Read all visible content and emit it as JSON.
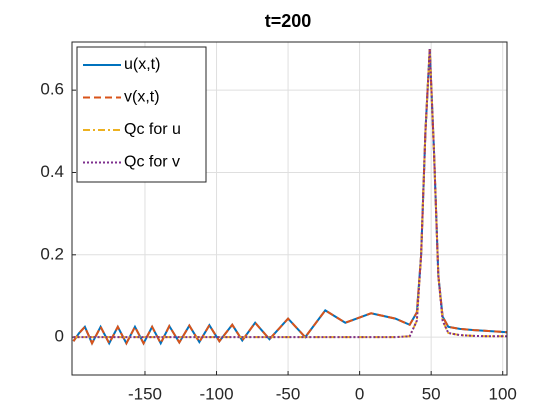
{
  "chart_data": {
    "type": "line",
    "title": "t=200",
    "x": [
      -200,
      -196,
      -192,
      -187,
      -181,
      -175,
      -169,
      -163,
      -157,
      -151,
      -145,
      -139,
      -133,
      -126,
      -119,
      -112,
      -105,
      -98,
      -89,
      -82,
      -73,
      -63,
      -50,
      -38,
      -24,
      -10,
      8,
      25,
      35,
      40,
      43,
      46,
      49,
      52,
      55,
      58,
      62,
      70,
      80,
      90,
      103
    ],
    "series": [
      {
        "name": "u(x,t)",
        "color": "#0072BD",
        "style": "solid",
        "values": [
          -0.01,
          0.01,
          0.025,
          -0.015,
          0.025,
          -0.015,
          0.025,
          -0.015,
          0.025,
          -0.015,
          0.025,
          -0.015,
          0.027,
          -0.013,
          0.028,
          -0.012,
          0.029,
          -0.01,
          0.03,
          -0.008,
          0.035,
          -0.005,
          0.045,
          0.0,
          0.065,
          0.035,
          0.058,
          0.045,
          0.03,
          0.06,
          0.2,
          0.5,
          0.7,
          0.45,
          0.15,
          0.05,
          0.025,
          0.02,
          0.017,
          0.015,
          0.012
        ]
      },
      {
        "name": "v(x,t)",
        "color": "#D95319",
        "style": "dashed",
        "values": [
          -0.01,
          0.01,
          0.025,
          -0.015,
          0.025,
          -0.015,
          0.025,
          -0.015,
          0.025,
          -0.015,
          0.025,
          -0.015,
          0.027,
          -0.013,
          0.028,
          -0.012,
          0.029,
          -0.01,
          0.03,
          -0.008,
          0.035,
          -0.005,
          0.045,
          0.0,
          0.065,
          0.035,
          0.058,
          0.045,
          0.03,
          0.06,
          0.2,
          0.5,
          0.7,
          0.45,
          0.15,
          0.05,
          0.025,
          0.02,
          0.017,
          0.015,
          0.012
        ]
      },
      {
        "name": "Qc for u",
        "color": "#EDB120",
        "style": "dashdot",
        "values": [
          0,
          0,
          0,
          0,
          0,
          0,
          0,
          0,
          0,
          0,
          0,
          0,
          0,
          0,
          0,
          0,
          0,
          0,
          0,
          0,
          0,
          0,
          0,
          0,
          0,
          0,
          0,
          0,
          0.002,
          0.04,
          0.2,
          0.5,
          0.7,
          0.45,
          0.15,
          0.04,
          0.01,
          0.005,
          0.003,
          0.002,
          0.002
        ]
      },
      {
        "name": "Qc for v",
        "color": "#7E2F8E",
        "style": "dotted",
        "values": [
          0,
          0,
          0,
          0,
          0,
          0,
          0,
          0,
          0,
          0,
          0,
          0,
          0,
          0,
          0,
          0,
          0,
          0,
          0,
          0,
          0,
          0,
          0,
          0,
          0,
          0,
          0,
          0,
          0.002,
          0.04,
          0.2,
          0.5,
          0.7,
          0.45,
          0.15,
          0.04,
          0.01,
          0.005,
          0.003,
          0.002,
          0.002
        ]
      }
    ],
    "xlim": [
      -201,
      103
    ],
    "ylim": [
      -0.092,
      0.717
    ],
    "xticks": [
      -150,
      -100,
      -50,
      0,
      50,
      100
    ],
    "yticks": [
      0,
      0.2,
      0.4,
      0.6
    ],
    "grid": true,
    "legend": "upper-left"
  }
}
